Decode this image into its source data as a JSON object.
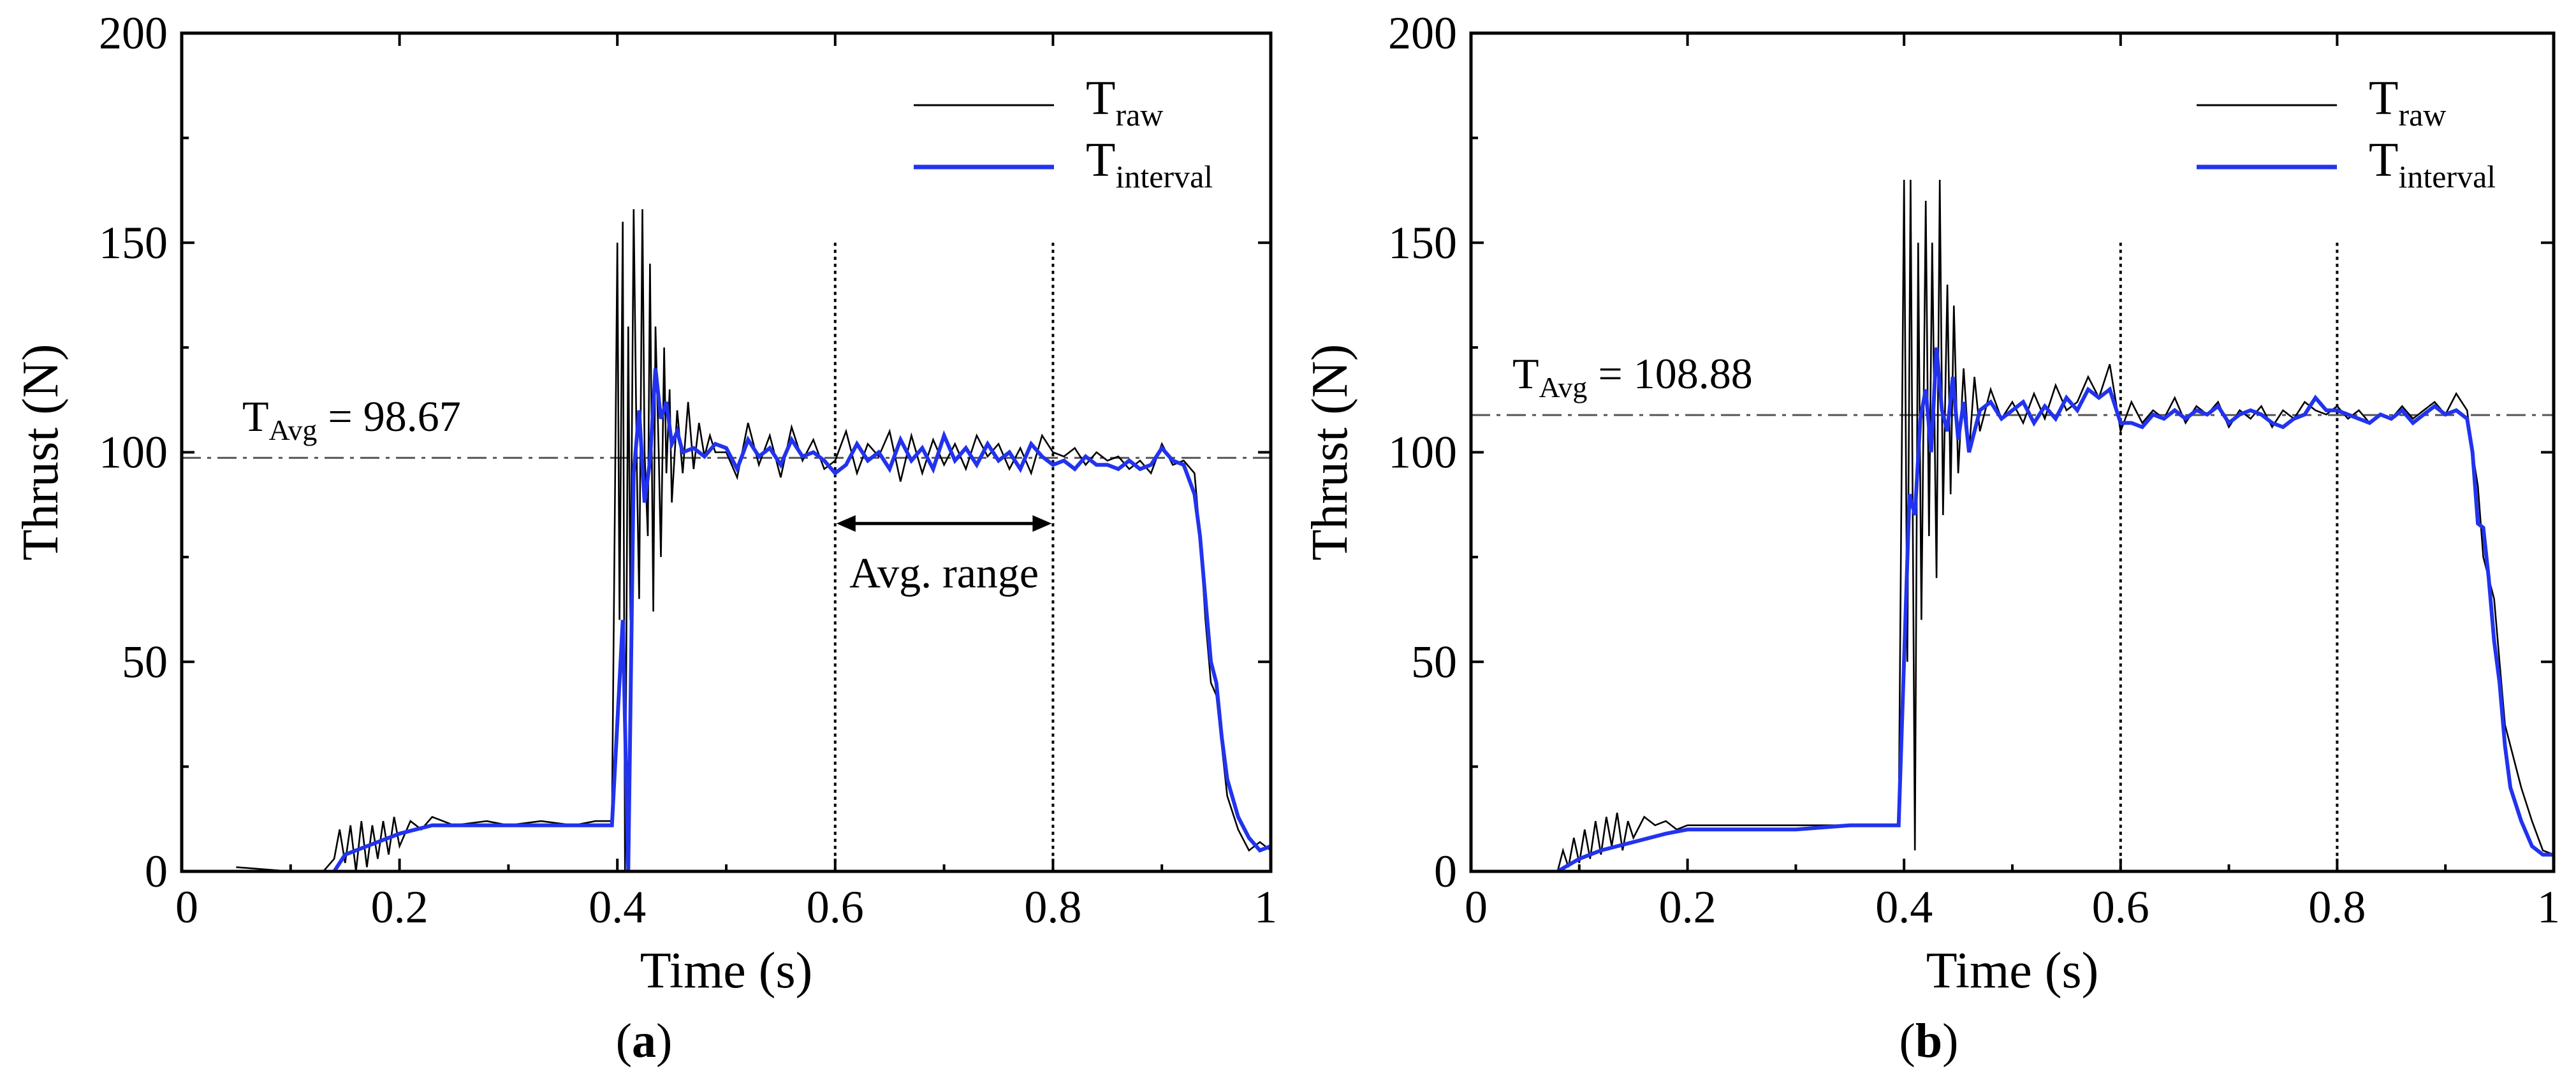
{
  "colors": {
    "raw": "#000000",
    "interval": "#2233ee",
    "avg_line": "#555555"
  },
  "chart_data": [
    {
      "id": "a",
      "type": "line",
      "caption": {
        "open": "(",
        "letter": "a",
        "close": ")"
      },
      "xlabel": "Time (s)",
      "ylabel": "Thrust (N)",
      "xlim": [
        0,
        1
      ],
      "ylim": [
        0,
        200
      ],
      "xticks": [
        0,
        0.2,
        0.4,
        0.6,
        0.8,
        1
      ],
      "xtick_labels": [
        "0",
        "0.2",
        "0.4",
        "0.6",
        "0.8",
        "1"
      ],
      "yticks": [
        0,
        50,
        100,
        150,
        200
      ],
      "ytick_labels": [
        "0",
        "50",
        "100",
        "150",
        "200"
      ],
      "legend": {
        "position": "top-right",
        "entries": [
          {
            "main": "T",
            "sub": "raw",
            "color": "#000000"
          },
          {
            "main": "T",
            "sub": "interval",
            "color": "#2233ee"
          }
        ]
      },
      "average": {
        "value": 98.67,
        "label_main": "T",
        "label_sub": "Avg",
        "label_value": " = 98.67"
      },
      "vlines": [
        0.6,
        0.8
      ],
      "range_annotation": {
        "from": 0.6,
        "to": 0.8,
        "y": 83,
        "label": "Avg. range"
      },
      "series": [
        {
          "name": "T_raw",
          "x": [
            0.05,
            0.1,
            0.13,
            0.14,
            0.145,
            0.15,
            0.155,
            0.16,
            0.165,
            0.17,
            0.175,
            0.18,
            0.185,
            0.19,
            0.195,
            0.2,
            0.21,
            0.22,
            0.23,
            0.25,
            0.28,
            0.3,
            0.33,
            0.36,
            0.38,
            0.395,
            0.4,
            0.402,
            0.405,
            0.407,
            0.41,
            0.412,
            0.415,
            0.418,
            0.42,
            0.423,
            0.425,
            0.428,
            0.43,
            0.433,
            0.435,
            0.438,
            0.44,
            0.443,
            0.445,
            0.448,
            0.45,
            0.455,
            0.46,
            0.465,
            0.47,
            0.475,
            0.48,
            0.485,
            0.49,
            0.5,
            0.51,
            0.52,
            0.53,
            0.54,
            0.55,
            0.56,
            0.57,
            0.58,
            0.59,
            0.6,
            0.61,
            0.62,
            0.63,
            0.64,
            0.65,
            0.66,
            0.67,
            0.68,
            0.69,
            0.7,
            0.71,
            0.72,
            0.73,
            0.74,
            0.75,
            0.76,
            0.77,
            0.78,
            0.79,
            0.8,
            0.81,
            0.82,
            0.83,
            0.84,
            0.85,
            0.86,
            0.87,
            0.88,
            0.89,
            0.9,
            0.91,
            0.92,
            0.93,
            0.935,
            0.94,
            0.945,
            0.95,
            0.955,
            0.96,
            0.97,
            0.98,
            0.99,
            1.0
          ],
          "y": [
            1,
            0,
            0,
            3,
            10,
            2,
            11,
            0,
            12,
            1,
            11,
            3,
            12,
            4,
            13,
            6,
            12,
            10,
            13,
            11,
            12,
            11,
            12,
            11,
            12,
            12,
            150,
            60,
            155,
            0,
            130,
            60,
            158,
            95,
            65,
            158,
            100,
            80,
            145,
            62,
            130,
            100,
            75,
            125,
            95,
            115,
            88,
            110,
            95,
            112,
            96,
            107,
            99,
            104,
            100,
            100,
            94,
            107,
            97,
            104,
            94,
            106,
            98,
            103,
            96,
            98,
            105,
            95,
            102,
            99,
            105,
            93,
            104,
            95,
            103,
            97,
            102,
            96,
            104,
            99,
            102,
            96,
            101,
            95,
            104,
            100,
            99,
            101,
            97,
            100,
            98,
            99,
            96,
            98,
            95,
            102,
            97,
            98,
            95,
            80,
            60,
            45,
            42,
            30,
            18,
            10,
            5,
            7,
            5
          ]
        },
        {
          "name": "T_interval",
          "x": [
            0.14,
            0.15,
            0.17,
            0.2,
            0.23,
            0.26,
            0.3,
            0.35,
            0.395,
            0.405,
            0.41,
            0.415,
            0.42,
            0.425,
            0.43,
            0.435,
            0.44,
            0.445,
            0.45,
            0.455,
            0.46,
            0.47,
            0.48,
            0.49,
            0.5,
            0.51,
            0.52,
            0.53,
            0.54,
            0.55,
            0.56,
            0.57,
            0.58,
            0.59,
            0.6,
            0.61,
            0.62,
            0.63,
            0.64,
            0.65,
            0.66,
            0.67,
            0.68,
            0.69,
            0.7,
            0.71,
            0.72,
            0.73,
            0.74,
            0.75,
            0.76,
            0.77,
            0.78,
            0.79,
            0.8,
            0.81,
            0.82,
            0.83,
            0.84,
            0.85,
            0.86,
            0.87,
            0.88,
            0.89,
            0.9,
            0.91,
            0.92,
            0.93,
            0.935,
            0.94,
            0.945,
            0.95,
            0.955,
            0.96,
            0.97,
            0.98,
            0.99,
            1.0
          ],
          "y": [
            0,
            4,
            6,
            9,
            11,
            11,
            11,
            11,
            11,
            60,
            0,
            95,
            110,
            88,
            98,
            120,
            108,
            112,
            102,
            105,
            100,
            101,
            99,
            102,
            101,
            96,
            103,
            99,
            101,
            97,
            103,
            99,
            100,
            98,
            95,
            97,
            102,
            98,
            100,
            96,
            103,
            98,
            101,
            96,
            104,
            98,
            101,
            97,
            102,
            98,
            100,
            96,
            102,
            99,
            97,
            98,
            96,
            99,
            97,
            97,
            96,
            98,
            96,
            97,
            101,
            98,
            97,
            90,
            80,
            65,
            50,
            45,
            32,
            22,
            13,
            8,
            5,
            6
          ]
        }
      ]
    },
    {
      "id": "b",
      "type": "line",
      "caption": {
        "open": "(",
        "letter": "b",
        "close": ")"
      },
      "xlabel": "Time (s)",
      "ylabel": "Thrust (N)",
      "xlim": [
        0,
        1
      ],
      "ylim": [
        0,
        200
      ],
      "xticks": [
        0,
        0.2,
        0.4,
        0.6,
        0.8,
        1
      ],
      "xtick_labels": [
        "0",
        "0.2",
        "0.4",
        "0.6",
        "0.8",
        "1"
      ],
      "yticks": [
        0,
        50,
        100,
        150,
        200
      ],
      "ytick_labels": [
        "0",
        "50",
        "100",
        "150",
        "200"
      ],
      "legend": {
        "position": "top-right",
        "entries": [
          {
            "main": "T",
            "sub": "raw",
            "color": "#000000"
          },
          {
            "main": "T",
            "sub": "interval",
            "color": "#2233ee"
          }
        ]
      },
      "average": {
        "value": 108.88,
        "label_main": "T",
        "label_sub": "Avg",
        "label_value": " = 108.88"
      },
      "vlines": [
        0.6,
        0.8
      ],
      "series": [
        {
          "name": "T_raw",
          "x": [
            0.02,
            0.05,
            0.08,
            0.085,
            0.09,
            0.095,
            0.1,
            0.105,
            0.11,
            0.115,
            0.12,
            0.125,
            0.13,
            0.135,
            0.14,
            0.145,
            0.15,
            0.16,
            0.17,
            0.18,
            0.19,
            0.2,
            0.25,
            0.3,
            0.35,
            0.38,
            0.395,
            0.4,
            0.403,
            0.406,
            0.41,
            0.413,
            0.416,
            0.42,
            0.423,
            0.426,
            0.43,
            0.433,
            0.436,
            0.44,
            0.443,
            0.446,
            0.45,
            0.455,
            0.46,
            0.465,
            0.47,
            0.48,
            0.49,
            0.5,
            0.51,
            0.52,
            0.53,
            0.54,
            0.55,
            0.56,
            0.57,
            0.58,
            0.59,
            0.6,
            0.61,
            0.62,
            0.63,
            0.64,
            0.65,
            0.66,
            0.67,
            0.68,
            0.69,
            0.7,
            0.71,
            0.72,
            0.73,
            0.74,
            0.75,
            0.76,
            0.77,
            0.78,
            0.79,
            0.8,
            0.81,
            0.82,
            0.83,
            0.84,
            0.85,
            0.86,
            0.87,
            0.88,
            0.89,
            0.9,
            0.91,
            0.92,
            0.925,
            0.93,
            0.935,
            0.94,
            0.945,
            0.95,
            0.955,
            0.96,
            0.97,
            0.98,
            0.99,
            1.0
          ],
          "y": [
            0,
            0,
            0,
            5,
            1,
            8,
            2,
            10,
            3,
            12,
            4,
            13,
            6,
            14,
            5,
            12,
            8,
            13,
            11,
            12,
            10,
            11,
            11,
            11,
            11,
            11,
            11,
            165,
            50,
            165,
            5,
            150,
            60,
            160,
            80,
            150,
            70,
            165,
            85,
            140,
            90,
            135,
            95,
            120,
            100,
            118,
            105,
            115,
            108,
            112,
            107,
            114,
            108,
            116,
            110,
            112,
            118,
            113,
            121,
            105,
            112,
            107,
            110,
            108,
            113,
            107,
            111,
            109,
            112,
            106,
            110,
            108,
            111,
            106,
            110,
            108,
            112,
            110,
            109,
            111,
            108,
            110,
            107,
            109,
            108,
            111,
            108,
            110,
            112,
            109,
            114,
            110,
            100,
            92,
            75,
            70,
            65,
            50,
            35,
            30,
            20,
            12,
            5,
            4
          ]
        },
        {
          "name": "T_interval",
          "x": [
            0.08,
            0.1,
            0.12,
            0.15,
            0.18,
            0.2,
            0.25,
            0.3,
            0.35,
            0.395,
            0.405,
            0.41,
            0.415,
            0.42,
            0.425,
            0.43,
            0.435,
            0.44,
            0.445,
            0.45,
            0.455,
            0.46,
            0.47,
            0.48,
            0.49,
            0.5,
            0.51,
            0.52,
            0.53,
            0.54,
            0.55,
            0.56,
            0.57,
            0.58,
            0.59,
            0.6,
            0.61,
            0.62,
            0.63,
            0.64,
            0.65,
            0.66,
            0.67,
            0.68,
            0.69,
            0.7,
            0.71,
            0.72,
            0.73,
            0.74,
            0.75,
            0.76,
            0.77,
            0.78,
            0.79,
            0.8,
            0.81,
            0.82,
            0.83,
            0.84,
            0.85,
            0.86,
            0.87,
            0.88,
            0.89,
            0.9,
            0.91,
            0.92,
            0.925,
            0.93,
            0.935,
            0.94,
            0.945,
            0.95,
            0.955,
            0.96,
            0.97,
            0.98,
            0.99,
            1.0
          ],
          "y": [
            0,
            3,
            5,
            7,
            9,
            10,
            10,
            10,
            11,
            11,
            90,
            85,
            108,
            115,
            100,
            125,
            110,
            105,
            118,
            103,
            112,
            100,
            110,
            112,
            108,
            110,
            112,
            107,
            111,
            108,
            113,
            110,
            115,
            113,
            115,
            107,
            107,
            106,
            109,
            108,
            110,
            108,
            110,
            109,
            111,
            107,
            109,
            110,
            109,
            107,
            106,
            108,
            109,
            113,
            110,
            110,
            109,
            108,
            107,
            109,
            108,
            110,
            107,
            109,
            111,
            109,
            110,
            108,
            100,
            83,
            82,
            70,
            55,
            45,
            30,
            20,
            12,
            6,
            4,
            4
          ]
        }
      ]
    }
  ]
}
